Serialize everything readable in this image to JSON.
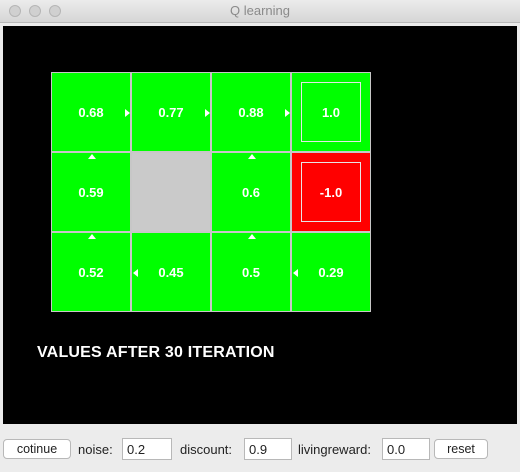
{
  "window": {
    "title": "Q learning",
    "controls": [
      "close",
      "minimize",
      "zoom"
    ]
  },
  "grid": {
    "rows": [
      [
        {
          "type": "normal",
          "value": "0.68",
          "policy": "right"
        },
        {
          "type": "normal",
          "value": "0.77",
          "policy": "right"
        },
        {
          "type": "normal",
          "value": "0.88",
          "policy": "right"
        },
        {
          "type": "terminal",
          "value": "1.0",
          "policy": null
        }
      ],
      [
        {
          "type": "normal",
          "value": "0.59",
          "policy": "up"
        },
        {
          "type": "wall",
          "value": "",
          "policy": null
        },
        {
          "type": "normal",
          "value": "0.6",
          "policy": "up"
        },
        {
          "type": "terminal-negative",
          "value": "-1.0",
          "policy": null
        }
      ],
      [
        {
          "type": "normal",
          "value": "0.52",
          "policy": "up"
        },
        {
          "type": "normal",
          "value": "0.45",
          "policy": "left"
        },
        {
          "type": "normal",
          "value": "0.5",
          "policy": "up"
        },
        {
          "type": "normal",
          "value": "0.29",
          "policy": "left"
        }
      ]
    ],
    "colors": {
      "positive": "#00ff00",
      "wall": "#cacaca",
      "negative": "#ff0000",
      "background": "#000000"
    }
  },
  "caption": "VALUES AFTER 30 ITERATION",
  "controls": {
    "continue_label": "cotinue",
    "noise_label": "noise:",
    "noise_value": "0.2",
    "discount_label": "discount:",
    "discount_value": "0.9",
    "living_reward_label": "livingreward:",
    "living_reward_value": "0.0",
    "reset_label": "reset"
  }
}
